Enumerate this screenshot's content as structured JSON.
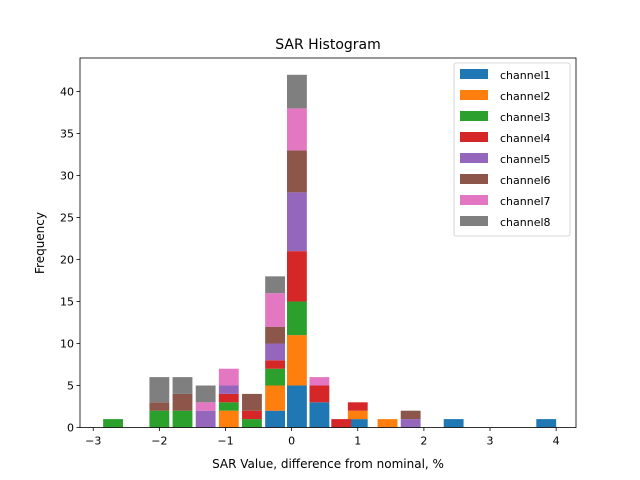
{
  "chart_data": {
    "type": "bar",
    "stacked": true,
    "title": "SAR Histogram",
    "xlabel": "SAR Value, difference from nominal, %",
    "ylabel": "Frequency",
    "xlim": [
      -3.2,
      4.3
    ],
    "ylim": [
      0,
      44
    ],
    "xticks": [
      -3,
      -2,
      -1,
      0,
      1,
      2,
      3,
      4
    ],
    "xtick_labels": [
      "−3",
      "−2",
      "−1",
      "0",
      "1",
      "2",
      "3",
      "4"
    ],
    "yticks": [
      0,
      5,
      10,
      15,
      20,
      25,
      30,
      35,
      40
    ],
    "ytick_labels": [
      "0",
      "5",
      "10",
      "15",
      "20",
      "25",
      "30",
      "35",
      "40"
    ],
    "bin_width": 0.3,
    "bin_centers": [
      -2.7,
      -2.0,
      -1.65,
      -1.3,
      -0.95,
      -0.6,
      -0.25,
      0.08,
      0.42,
      0.75,
      1.0,
      1.45,
      1.8,
      2.45,
      3.85
    ],
    "legend_position": "upper-right",
    "series": [
      {
        "name": "channel1",
        "color": "#1f77b4",
        "values": [
          0,
          0,
          0,
          0,
          0,
          0,
          2,
          5,
          3,
          0,
          1,
          0,
          0,
          1,
          1
        ]
      },
      {
        "name": "channel2",
        "color": "#ff7f0e",
        "values": [
          0,
          0,
          0,
          0,
          2,
          0,
          3,
          6,
          0,
          0,
          1,
          1,
          0,
          0,
          0
        ]
      },
      {
        "name": "channel3",
        "color": "#2ca02c",
        "values": [
          1,
          2,
          2,
          0,
          1,
          1,
          2,
          4,
          0,
          0,
          0,
          0,
          0,
          0,
          0
        ]
      },
      {
        "name": "channel4",
        "color": "#d62728",
        "values": [
          0,
          0,
          0,
          0,
          1,
          1,
          1,
          6,
          2,
          1,
          1,
          0,
          0,
          0,
          0
        ]
      },
      {
        "name": "channel5",
        "color": "#9467bd",
        "values": [
          0,
          0,
          0,
          2,
          1,
          0,
          2,
          7,
          0,
          0,
          0,
          0,
          1,
          0,
          0
        ]
      },
      {
        "name": "channel6",
        "color": "#8c564b",
        "values": [
          0,
          1,
          2,
          0,
          0,
          2,
          2,
          5,
          0,
          0,
          0,
          0,
          1,
          0,
          0
        ]
      },
      {
        "name": "channel7",
        "color": "#e377c2",
        "values": [
          0,
          0,
          0,
          1,
          2,
          0,
          4,
          5,
          1,
          0,
          0,
          0,
          0,
          0,
          0
        ]
      },
      {
        "name": "channel8",
        "color": "#7f7f7f",
        "values": [
          0,
          3,
          2,
          2,
          0,
          0,
          2,
          4,
          0,
          0,
          0,
          0,
          0,
          0,
          0
        ]
      }
    ]
  }
}
